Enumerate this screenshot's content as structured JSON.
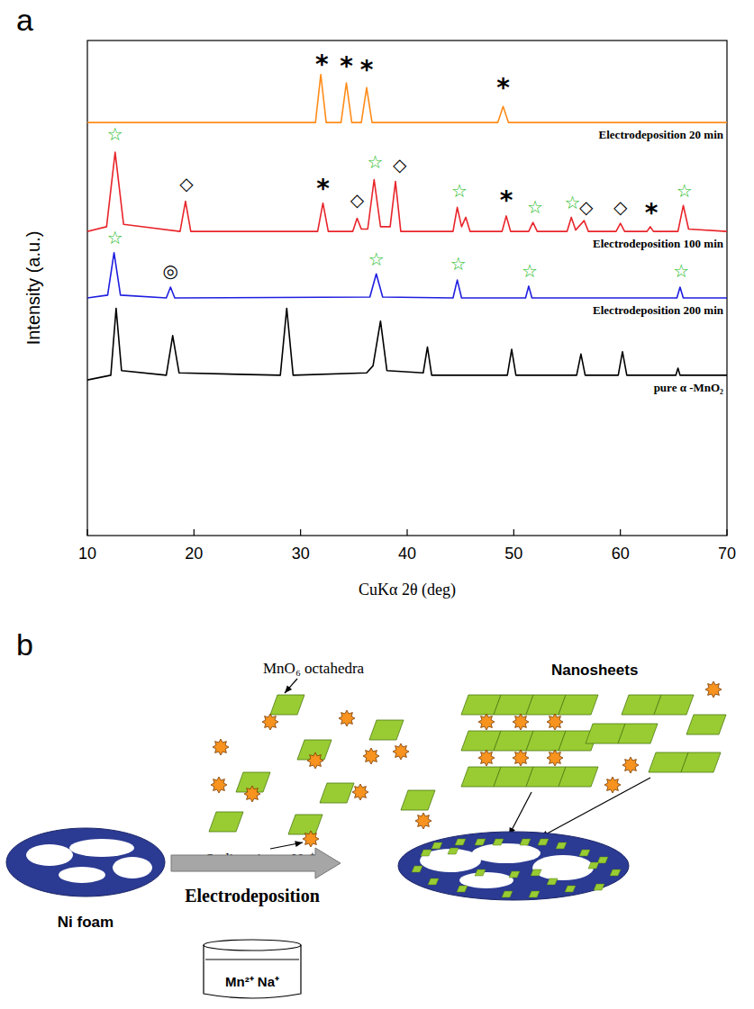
{
  "panel_labels": [
    "a",
    "b"
  ],
  "chart_data": {
    "type": "line",
    "x_label": "CuKα 2θ (deg)",
    "y_label": "Intensity (a.u.)",
    "xlim": [
      10,
      70
    ],
    "xticks": [
      10,
      20,
      30,
      40,
      50,
      60,
      70
    ],
    "ylim": [
      0,
      105
    ],
    "tick_labels": "x",
    "grid": false,
    "series": [
      {
        "name": "Electrodeposition 20 min",
        "color": "#ff8c1a",
        "x": [
          10,
          31.4,
          31.9,
          32.4,
          33.8,
          34.3,
          34.8,
          35.7,
          36.2,
          36.7,
          48.5,
          49.0,
          49.5,
          70
        ],
        "values": [
          87.6,
          87.6,
          97.8,
          87.6,
          87.6,
          96.0,
          87.6,
          87.6,
          95.0,
          87.6,
          87.6,
          91.0,
          87.6,
          87.6
        ]
      },
      {
        "name": "Electrodeposition 100 min",
        "color": "#e8252b",
        "x": [
          10,
          11.8,
          12.6,
          13.4,
          18.7,
          19.2,
          19.7,
          31.6,
          32.1,
          32.6,
          34.9,
          35.3,
          35.7,
          36.3,
          36.9,
          37.5,
          38.4,
          38.9,
          39.4,
          44.3,
          44.7,
          45.1,
          45.5,
          45.9,
          48.9,
          49.3,
          49.7,
          51.4,
          51.8,
          52.2,
          55.0,
          55.4,
          55.8,
          56.6,
          57.0,
          59.6,
          60.0,
          60.4,
          62.5,
          62.8,
          63.1,
          65.4,
          65.9,
          66.4,
          70
        ],
        "values": [
          64.5,
          65.5,
          81.3,
          66.0,
          64.5,
          70.9,
          64.5,
          64.5,
          70.5,
          64.5,
          64.5,
          67.3,
          65.0,
          65.0,
          75.5,
          65.5,
          65.5,
          75.1,
          64.5,
          64.5,
          69.6,
          65.5,
          67.5,
          64.5,
          64.5,
          67.8,
          64.5,
          64.5,
          66.4,
          64.5,
          64.5,
          67.5,
          64.8,
          66.8,
          64.5,
          64.5,
          66.2,
          64.5,
          64.5,
          65.5,
          64.5,
          64.5,
          70.0,
          65.0,
          64.5
        ]
      },
      {
        "name": "Electrodeposition 200 min",
        "color": "#1f1fe0",
        "x": [
          10,
          11.9,
          12.5,
          13.1,
          17.4,
          17.8,
          18.2,
          36.5,
          37.1,
          37.7,
          44.3,
          44.7,
          45.1,
          51.1,
          51.4,
          51.7,
          65.3,
          65.6,
          65.9,
          70
        ],
        "values": [
          50.4,
          51.0,
          60.0,
          51.0,
          50.4,
          52.7,
          50.4,
          50.6,
          55.5,
          50.6,
          50.4,
          54.2,
          50.4,
          50.4,
          52.9,
          50.4,
          50.4,
          52.7,
          50.4,
          50.4
        ]
      },
      {
        "name": "pure α -MnO₂",
        "color": "#000000",
        "x": [
          10,
          12.2,
          12.7,
          13.2,
          17.4,
          18.0,
          18.6,
          28.1,
          28.7,
          29.3,
          36.2,
          36.8,
          37.5,
          38.1,
          41.5,
          41.9,
          42.3,
          49.4,
          49.8,
          50.2,
          55.9,
          56.3,
          56.7,
          59.8,
          60.2,
          60.6,
          65.2,
          65.4,
          65.6,
          70
        ],
        "values": [
          33.0,
          34.0,
          48.2,
          35.0,
          34.0,
          42.4,
          34.5,
          34.0,
          48.2,
          34.0,
          34.5,
          36.0,
          45.5,
          35.0,
          34.5,
          40.0,
          34.0,
          34.0,
          39.5,
          34.0,
          34.0,
          38.5,
          34.0,
          34.0,
          39.0,
          34.0,
          34.0,
          35.5,
          34.0,
          34.0
        ]
      }
    ],
    "annotations": [
      {
        "text": "*",
        "x": 32.0,
        "y": 100.5,
        "color": "#000000"
      },
      {
        "text": "*",
        "x": 34.3,
        "y": 100.0,
        "color": "#000000"
      },
      {
        "text": "*",
        "x": 36.2,
        "y": 99.3,
        "color": "#000000"
      },
      {
        "text": "*",
        "x": 49.0,
        "y": 95.5,
        "color": "#000000"
      },
      {
        "text": "☆",
        "x": 12.6,
        "y": 85.0,
        "color": "#22bb22"
      },
      {
        "text": "◇",
        "x": 19.3,
        "y": 74.5,
        "color": "#000000"
      },
      {
        "text": "*",
        "x": 32.1,
        "y": 74.0,
        "color": "#000000"
      },
      {
        "text": "◇",
        "x": 35.3,
        "y": 71.0,
        "color": "#000000"
      },
      {
        "text": "☆",
        "x": 37.0,
        "y": 79.0,
        "color": "#22bb22"
      },
      {
        "text": "◇",
        "x": 39.3,
        "y": 78.5,
        "color": "#000000"
      },
      {
        "text": "☆",
        "x": 44.9,
        "y": 73.0,
        "color": "#22bb22"
      },
      {
        "text": "*",
        "x": 49.3,
        "y": 71.5,
        "color": "#000000"
      },
      {
        "text": "☆",
        "x": 52.0,
        "y": 69.5,
        "color": "#22bb22"
      },
      {
        "text": "☆",
        "x": 55.5,
        "y": 70.5,
        "color": "#22bb22"
      },
      {
        "text": "◇",
        "x": 56.8,
        "y": 69.5,
        "color": "#000000"
      },
      {
        "text": "◇",
        "x": 60.0,
        "y": 69.5,
        "color": "#000000"
      },
      {
        "text": "*",
        "x": 62.9,
        "y": 69.0,
        "color": "#000000"
      },
      {
        "text": "☆",
        "x": 66.0,
        "y": 73.0,
        "color": "#22bb22"
      },
      {
        "text": "☆",
        "x": 12.6,
        "y": 63.0,
        "color": "#22bb22"
      },
      {
        "text": "◎",
        "x": 17.8,
        "y": 56.0,
        "color": "#000000"
      },
      {
        "text": "☆",
        "x": 37.1,
        "y": 58.5,
        "color": "#22bb22"
      },
      {
        "text": "☆",
        "x": 44.8,
        "y": 57.5,
        "color": "#22bb22"
      },
      {
        "text": "☆",
        "x": 51.5,
        "y": 56.0,
        "color": "#22bb22"
      },
      {
        "text": "☆",
        "x": 65.7,
        "y": 56.0,
        "color": "#22bb22"
      }
    ]
  },
  "diagram": {
    "labels": {
      "octahedra": "MnO₆ octahedra",
      "nanosheets": "Nanosheets",
      "sodium": "Sodium ion：Na⁺",
      "substrate": "Ni foam",
      "process": "Electrodeposition",
      "solution": "Mn²⁺  Na⁺"
    }
  }
}
